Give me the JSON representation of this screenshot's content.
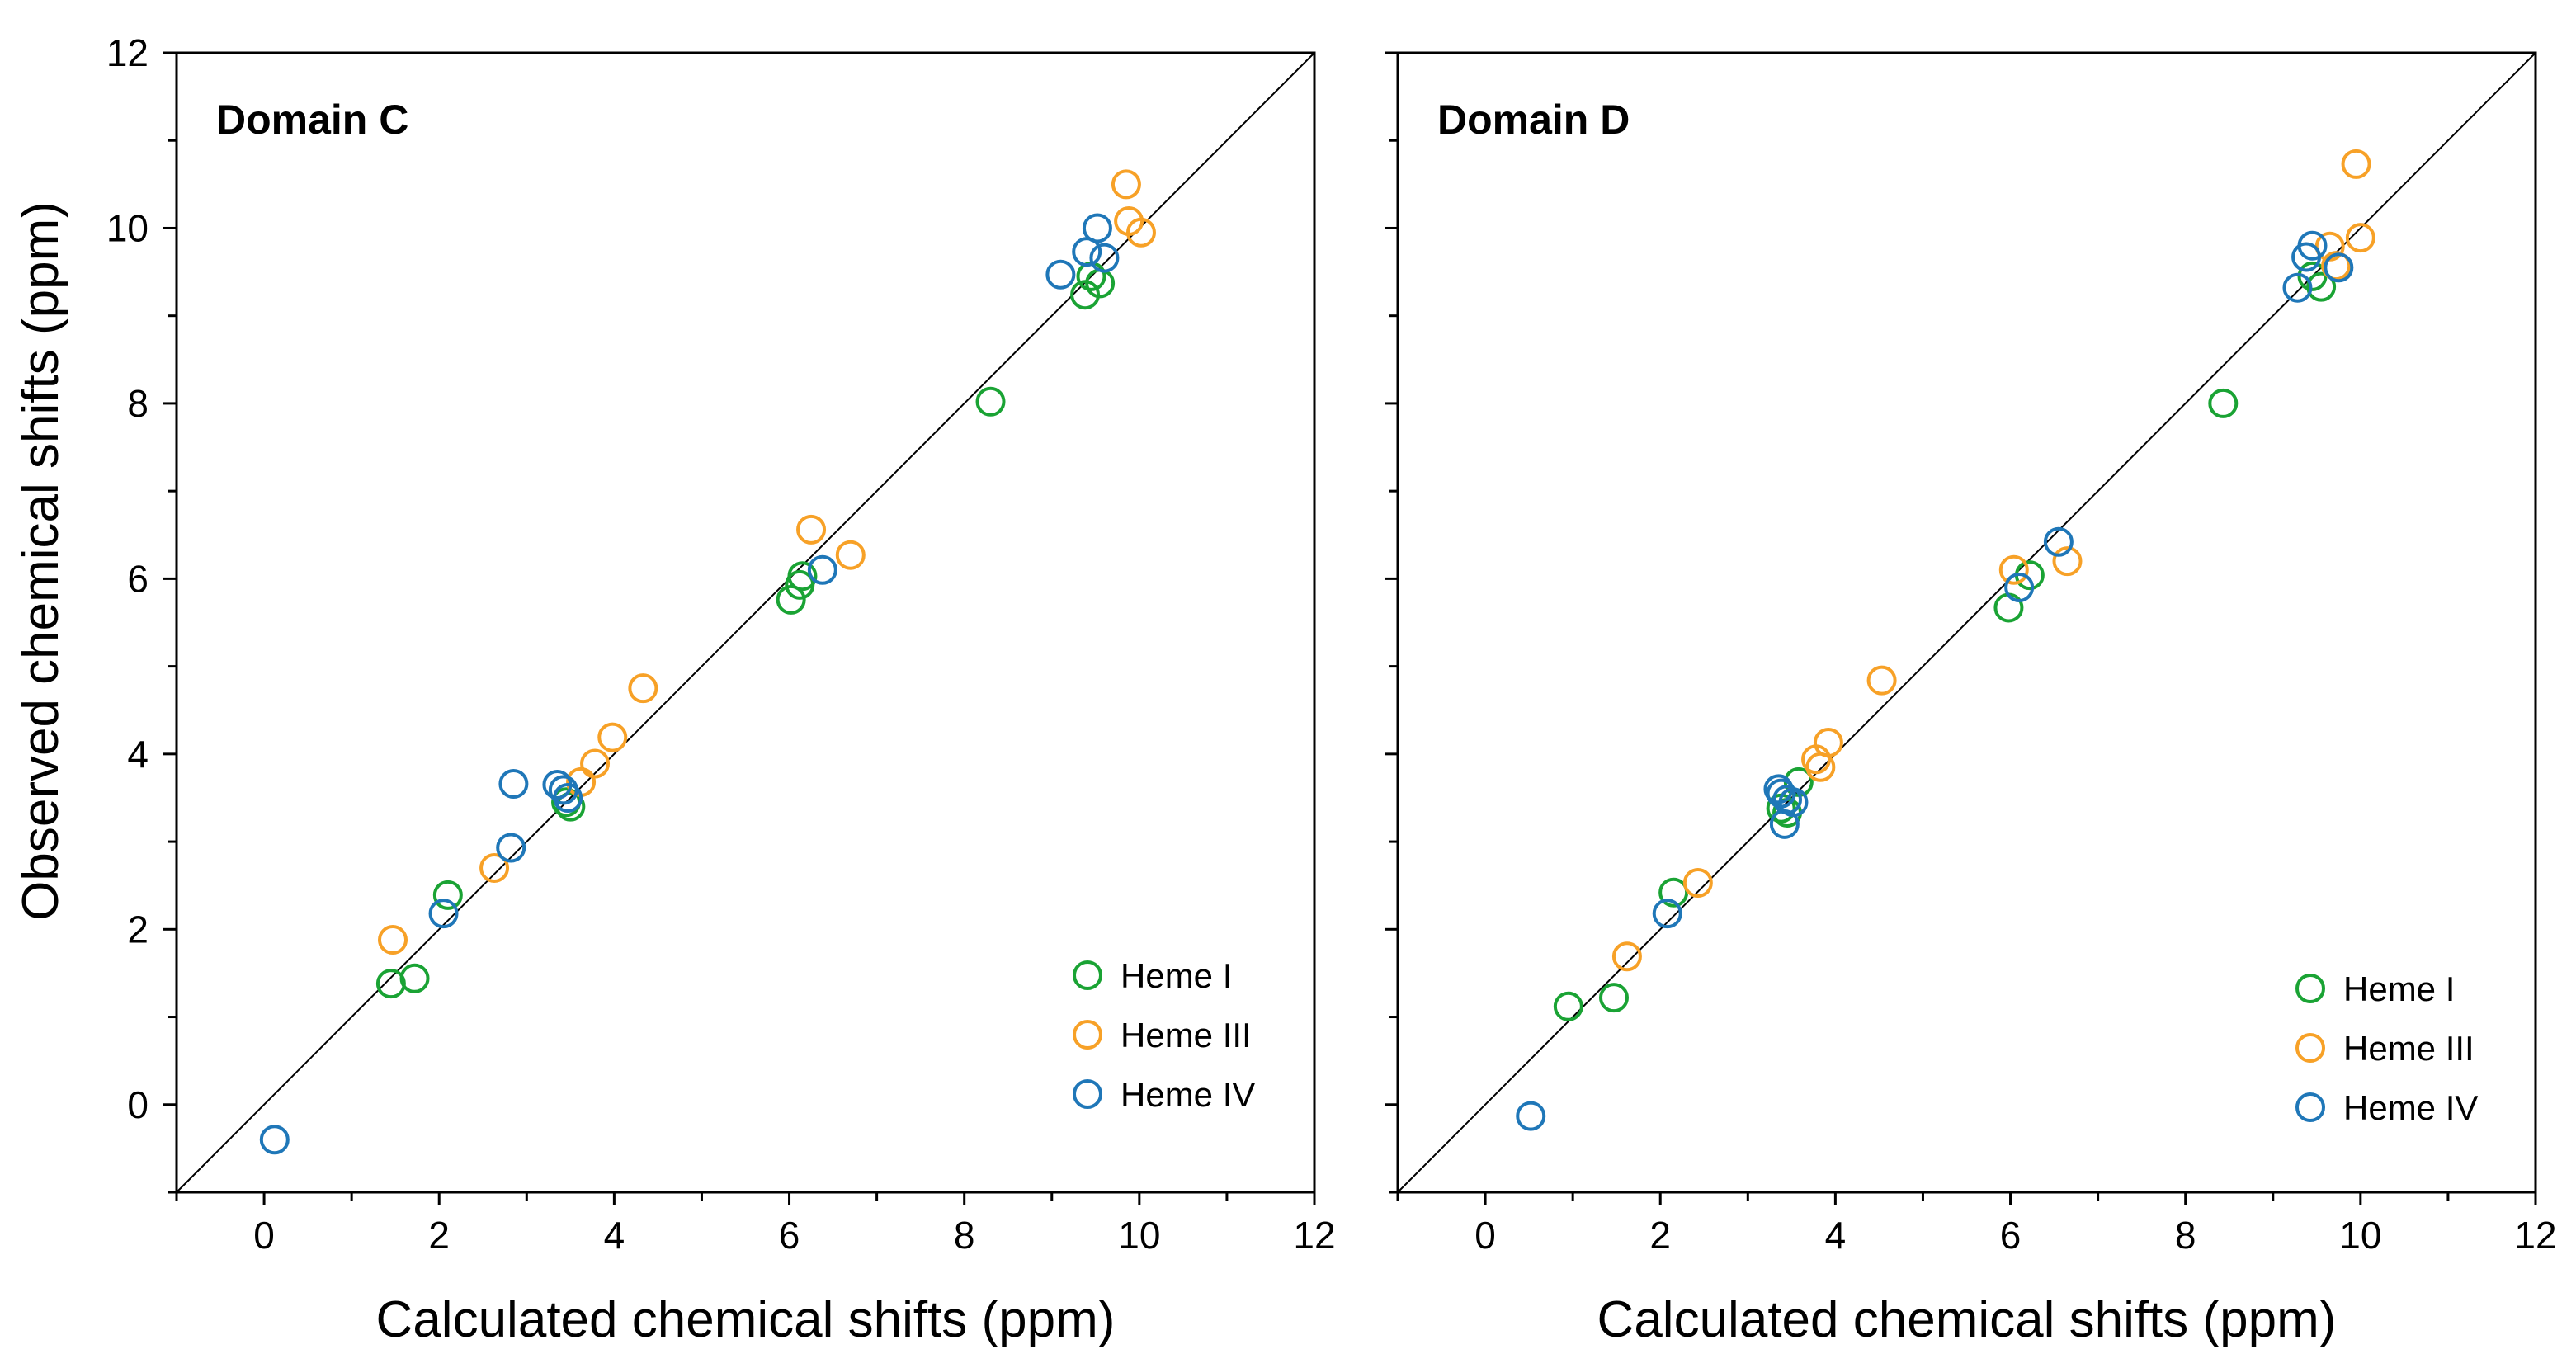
{
  "colors": {
    "Heme I": "#1aa334",
    "Heme III": "#f7a127",
    "Heme IV": "#1f77b8",
    "axis": "#000000",
    "background": "#ffffff"
  },
  "shared_ylabel": "Observed chemical shifts (ppm)",
  "chart_data": [
    {
      "type": "scatter",
      "title": "Domain C",
      "xlabel": "Calculated chemical shifts (ppm)",
      "ylabel": "Observed chemical shifts (ppm)",
      "xlim": [
        -1,
        12
      ],
      "ylim": [
        -1,
        12
      ],
      "x_ticks": [
        0,
        2,
        4,
        6,
        8,
        10,
        12
      ],
      "y_ticks": [
        0,
        2,
        4,
        6,
        8,
        10,
        12
      ],
      "x_tick_labels": [
        "0",
        "2",
        "4",
        "6",
        "8",
        "10",
        "12"
      ],
      "y_tick_labels": [
        "0",
        "2",
        "4",
        "6",
        "8",
        "10",
        "12"
      ],
      "show_y_tick_labels": true,
      "reference_line": "y = x",
      "grid": false,
      "legend_position": "bottom-right",
      "series": [
        {
          "name": "Heme I",
          "marker": "open-circle",
          "x": [
            1.45,
            1.72,
            2.1,
            3.45,
            3.5,
            6.02,
            6.12,
            6.15,
            8.3,
            9.38,
            9.45,
            9.55
          ],
          "y": [
            1.38,
            1.44,
            2.39,
            3.45,
            3.4,
            5.76,
            5.93,
            6.03,
            8.02,
            9.24,
            9.45,
            9.37
          ]
        },
        {
          "name": "Heme III",
          "marker": "open-circle",
          "x": [
            1.47,
            2.63,
            3.62,
            3.78,
            3.98,
            4.33,
            6.25,
            6.7,
            9.85,
            9.88,
            10.02
          ],
          "y": [
            1.88,
            2.7,
            3.68,
            3.89,
            4.19,
            4.75,
            6.56,
            6.27,
            10.5,
            10.08,
            9.95
          ]
        },
        {
          "name": "Heme IV",
          "marker": "open-circle",
          "x": [
            0.12,
            2.05,
            2.82,
            2.85,
            3.35,
            3.42,
            3.47,
            6.38,
            9.1,
            9.4,
            9.52,
            9.6
          ],
          "y": [
            -0.4,
            2.18,
            2.93,
            3.66,
            3.65,
            3.59,
            3.5,
            6.1,
            9.47,
            9.73,
            10.0,
            9.66
          ]
        }
      ]
    },
    {
      "type": "scatter",
      "title": "Domain D",
      "xlabel": "Calculated chemical shifts (ppm)",
      "xlim": [
        -1,
        12
      ],
      "ylim": [
        -1,
        12
      ],
      "x_ticks": [
        0,
        2,
        4,
        6,
        8,
        10,
        12
      ],
      "y_ticks": [
        0,
        2,
        4,
        6,
        8,
        10,
        12
      ],
      "x_tick_labels": [
        "0",
        "2",
        "4",
        "6",
        "8",
        "10",
        "12"
      ],
      "show_y_tick_labels": false,
      "reference_line": "y = x",
      "grid": false,
      "legend_position": "bottom-right",
      "series": [
        {
          "name": "Heme I",
          "marker": "open-circle",
          "x": [
            0.95,
            1.47,
            2.15,
            3.38,
            3.45,
            3.58,
            5.98,
            6.22,
            8.43,
            9.45,
            9.55
          ],
          "y": [
            1.12,
            1.22,
            2.42,
            3.38,
            3.33,
            3.68,
            5.67,
            6.04,
            8.0,
            9.45,
            9.33
          ]
        },
        {
          "name": "Heme III",
          "marker": "open-circle",
          "x": [
            1.62,
            2.43,
            3.78,
            3.83,
            3.92,
            4.53,
            6.04,
            6.65,
            9.65,
            9.72,
            9.95,
            10.0
          ],
          "y": [
            1.69,
            2.53,
            3.94,
            3.85,
            4.13,
            4.84,
            6.1,
            6.2,
            9.79,
            9.57,
            10.73,
            9.89
          ]
        },
        {
          "name": "Heme IV",
          "marker": "open-circle",
          "x": [
            0.52,
            2.08,
            3.35,
            3.38,
            3.42,
            3.45,
            3.52,
            6.1,
            6.55,
            9.28,
            9.38,
            9.45,
            9.75
          ],
          "y": [
            -0.13,
            2.18,
            3.6,
            3.55,
            3.2,
            3.48,
            3.45,
            5.9,
            6.42,
            9.32,
            9.67,
            9.8,
            9.55
          ]
        }
      ]
    }
  ]
}
